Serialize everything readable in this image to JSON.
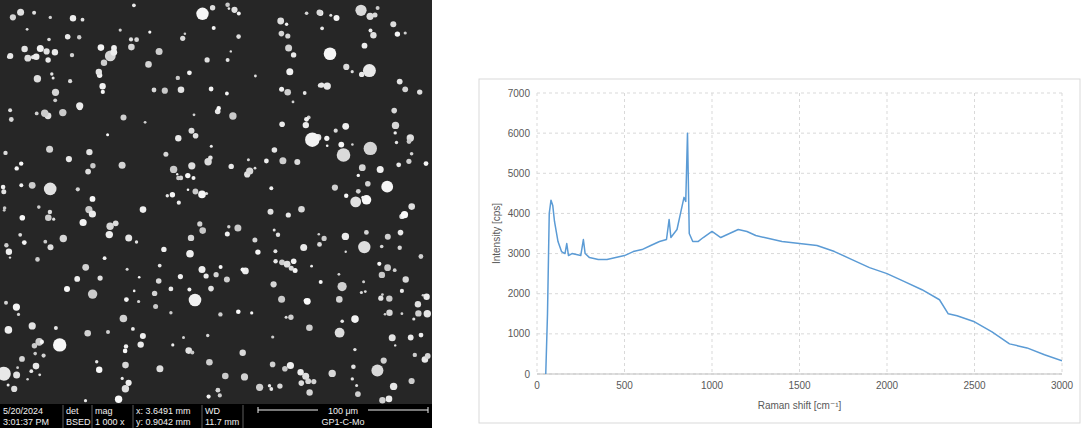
{
  "sem_image": {
    "date": "5/20/2024",
    "time": "3:01:37 PM",
    "det_label": "det",
    "det": "BSED",
    "mag_label": "mag",
    "mag": "1 000 x",
    "x": "x: 3.6491 mm",
    "y": "y: 0.9042 mm",
    "wd_label": "WD",
    "wd": "11.7 mm",
    "scale_bar": "100 μm",
    "sample": "GP1-C-Mo"
  },
  "chart_data": {
    "type": "line",
    "x_label": "Raman shift [cm⁻¹]",
    "y_label": "Intensity [cps]",
    "x": [
      50,
      60,
      70,
      80,
      90,
      100,
      120,
      140,
      160,
      170,
      180,
      200,
      250,
      265,
      275,
      300,
      350,
      400,
      450,
      500,
      550,
      600,
      650,
      700,
      740,
      755,
      765,
      800,
      820,
      840,
      850,
      860,
      870,
      890,
      920,
      950,
      1000,
      1050,
      1100,
      1150,
      1200,
      1250,
      1300,
      1400,
      1500,
      1600,
      1700,
      1800,
      1900,
      2000,
      2100,
      2200,
      2300,
      2350,
      2400,
      2500,
      2600,
      2700,
      2750,
      2800,
      2900,
      3000
    ],
    "values": [
      0,
      1500,
      4000,
      4330,
      4200,
      3800,
      3300,
      3050,
      3000,
      3250,
      2950,
      3000,
      2950,
      3350,
      3000,
      2900,
      2850,
      2850,
      2900,
      2950,
      3050,
      3100,
      3200,
      3300,
      3350,
      3850,
      3400,
      3600,
      4000,
      4400,
      4300,
      6000,
      3500,
      3300,
      3300,
      3400,
      3550,
      3400,
      3500,
      3600,
      3550,
      3450,
      3400,
      3300,
      3250,
      3200,
      3050,
      2850,
      2650,
      2500,
      2300,
      2100,
      1850,
      1500,
      1450,
      1300,
      1050,
      750,
      700,
      650,
      480,
      330
    ],
    "color": "#5b9bd5",
    "marker": "none",
    "line_style": "solid",
    "grid": true,
    "xlim": [
      0,
      3000
    ],
    "xticks": [
      0,
      500,
      1000,
      1500,
      2000,
      2500,
      3000
    ],
    "ylim": [
      0,
      7000
    ],
    "yticks": [
      0,
      1000,
      2000,
      3000,
      4000,
      5000,
      6000,
      7000
    ]
  }
}
